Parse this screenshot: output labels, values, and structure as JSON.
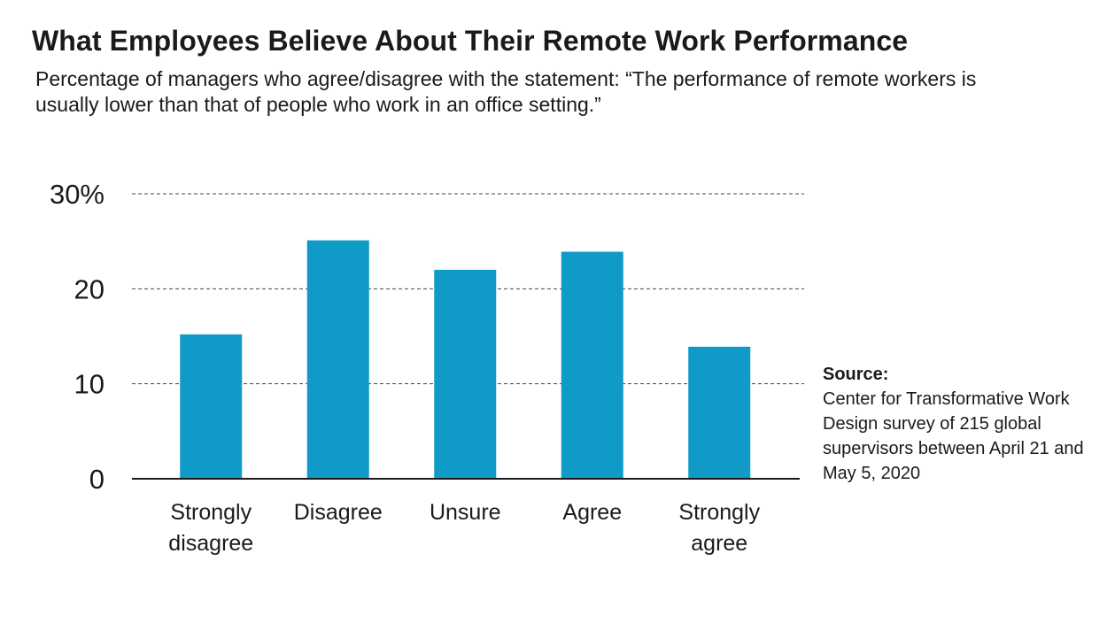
{
  "title": "What Employees Believe About Their Remote Work Performance",
  "subtitle": "Percentage of managers who agree/disagree with the statement: “The performance of remote workers is usually lower than that of people who work in an office setting.”",
  "source": {
    "heading": "Source:",
    "text": "Center for Transformative Work Design survey of 215 global supervisors between April 21 and May 5, 2020"
  },
  "colors": {
    "bar": "#0f9ac8",
    "grid": "#444444",
    "axis": "#1a1a1a"
  },
  "chart_data": {
    "type": "bar",
    "title": "What Employees Believe About Their Remote Work Performance",
    "subtitle": "Percentage of managers who agree/disagree with the statement: “The performance of remote workers is usually lower than that of people who work in an office setting.”",
    "categories": [
      [
        "Strongly",
        "disagree"
      ],
      [
        "Disagree"
      ],
      [
        "Unsure"
      ],
      [
        "Agree"
      ],
      [
        "Strongly",
        "agree"
      ]
    ],
    "values": [
      15.2,
      25.1,
      22.0,
      23.9,
      13.9
    ],
    "xlabel": "",
    "ylabel": "",
    "ylim": [
      0,
      30
    ],
    "yticks": [
      0,
      10,
      20,
      30
    ],
    "ytick_labels": [
      "0",
      "10",
      "20",
      "30%"
    ],
    "grid": "horizontal dashed",
    "legend": "none"
  }
}
